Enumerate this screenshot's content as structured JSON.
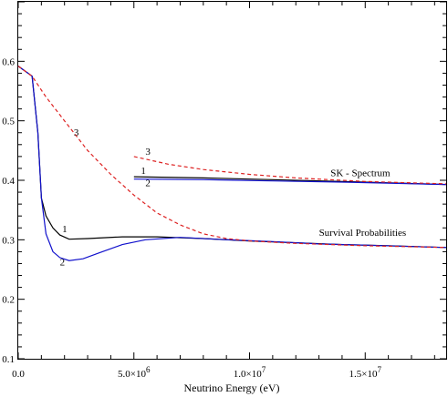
{
  "chart_data": {
    "type": "line",
    "xlabel": "Neutrino Energy (eV)",
    "ylabel": "",
    "xlim": [
      0,
      18500000
    ],
    "ylim": [
      0.1,
      0.7
    ],
    "grid": false,
    "x_ticks": [
      {
        "value": 0,
        "label": "0.0"
      },
      {
        "value": 5000000,
        "label": "5.0×10",
        "exp": "6"
      },
      {
        "value": 10000000,
        "label": "1.0×10",
        "exp": "7"
      },
      {
        "value": 15000000,
        "label": "1.5×10",
        "exp": "7"
      }
    ],
    "y_ticks": [
      {
        "value": 0.1,
        "label": "0.1"
      },
      {
        "value": 0.2,
        "label": "0.2"
      },
      {
        "value": 0.3,
        "label": "0.3"
      },
      {
        "value": 0.4,
        "label": "0.4"
      },
      {
        "value": 0.5,
        "label": "0.5"
      },
      {
        "value": 0.6,
        "label": "0.6"
      }
    ],
    "series": [
      {
        "key": "survival-1",
        "color": "#000000",
        "dash": false,
        "points": [
          [
            0,
            0.592
          ],
          [
            600000,
            0.575
          ],
          [
            850000,
            0.48
          ],
          [
            1000000,
            0.37
          ],
          [
            1200000,
            0.34
          ],
          [
            1500000,
            0.32
          ],
          [
            1800000,
            0.308
          ],
          [
            2200000,
            0.301
          ],
          [
            3000000,
            0.302
          ],
          [
            4500000,
            0.305
          ],
          [
            6000000,
            0.305
          ],
          [
            8000000,
            0.302
          ],
          [
            10000000,
            0.298
          ],
          [
            12000000,
            0.295
          ],
          [
            14000000,
            0.292
          ],
          [
            16000000,
            0.29
          ],
          [
            18500000,
            0.287
          ]
        ]
      },
      {
        "key": "survival-2",
        "color": "#1010cc",
        "dash": false,
        "points": [
          [
            0,
            0.592
          ],
          [
            600000,
            0.575
          ],
          [
            850000,
            0.48
          ],
          [
            1000000,
            0.37
          ],
          [
            1200000,
            0.31
          ],
          [
            1500000,
            0.28
          ],
          [
            1800000,
            0.27
          ],
          [
            2200000,
            0.265
          ],
          [
            2800000,
            0.268
          ],
          [
            3500000,
            0.278
          ],
          [
            4500000,
            0.292
          ],
          [
            5500000,
            0.3
          ],
          [
            7000000,
            0.304
          ],
          [
            9000000,
            0.3
          ],
          [
            11000000,
            0.297
          ],
          [
            13000000,
            0.293
          ],
          [
            15000000,
            0.291
          ],
          [
            18500000,
            0.287
          ]
        ]
      },
      {
        "key": "survival-3",
        "color": "#dd2222",
        "dash": true,
        "points": [
          [
            0,
            0.592
          ],
          [
            600000,
            0.575
          ],
          [
            1200000,
            0.54
          ],
          [
            2000000,
            0.5
          ],
          [
            3000000,
            0.45
          ],
          [
            4000000,
            0.41
          ],
          [
            5000000,
            0.375
          ],
          [
            6000000,
            0.345
          ],
          [
            7000000,
            0.325
          ],
          [
            8000000,
            0.31
          ],
          [
            9000000,
            0.302
          ],
          [
            10000000,
            0.298
          ],
          [
            12000000,
            0.294
          ],
          [
            15000000,
            0.29
          ],
          [
            18500000,
            0.287
          ]
        ]
      },
      {
        "key": "spectrum-1",
        "color": "#000000",
        "dash": false,
        "points": [
          [
            5000000,
            0.406
          ],
          [
            8000000,
            0.404
          ],
          [
            11000000,
            0.401
          ],
          [
            14000000,
            0.398
          ],
          [
            18500000,
            0.393
          ]
        ]
      },
      {
        "key": "spectrum-2",
        "color": "#1010cc",
        "dash": false,
        "points": [
          [
            5000000,
            0.402
          ],
          [
            8000000,
            0.401
          ],
          [
            11000000,
            0.399
          ],
          [
            14000000,
            0.397
          ],
          [
            18500000,
            0.393
          ]
        ]
      },
      {
        "key": "spectrum-3",
        "color": "#dd2222",
        "dash": true,
        "points": [
          [
            5000000,
            0.44
          ],
          [
            6500000,
            0.427
          ],
          [
            8000000,
            0.418
          ],
          [
            10000000,
            0.41
          ],
          [
            12000000,
            0.404
          ],
          [
            15000000,
            0.398
          ],
          [
            18500000,
            0.394
          ]
        ]
      }
    ],
    "annotations": [
      {
        "text": "1",
        "x": 1900000,
        "y": 0.313
      },
      {
        "text": "2",
        "x": 1800000,
        "y": 0.257
      },
      {
        "text": "3",
        "x": 2400000,
        "y": 0.475
      },
      {
        "text": "3",
        "x": 5500000,
        "y": 0.443
      },
      {
        "text": "1",
        "x": 5300000,
        "y": 0.411
      },
      {
        "text": "2",
        "x": 5500000,
        "y": 0.39
      },
      {
        "text": "SK - Spectrum",
        "x": 13500000,
        "y": 0.407
      },
      {
        "text": "Survival Probabilities",
        "x": 13000000,
        "y": 0.307
      }
    ]
  }
}
